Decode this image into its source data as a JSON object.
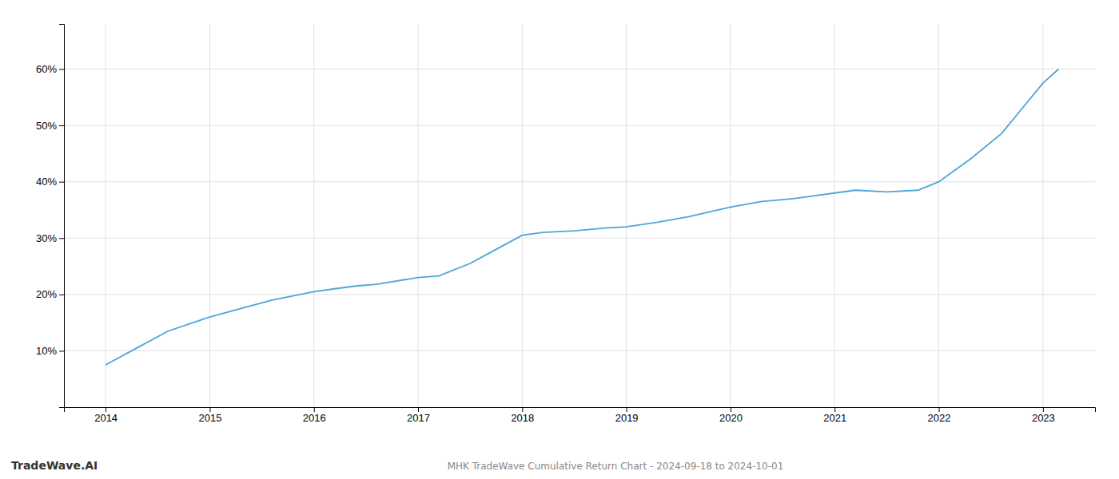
{
  "chart_data": {
    "type": "line",
    "title": "MHK TradeWave Cumulative Return Chart - 2024-09-18 to 2024-10-01",
    "annotations": [
      "TradeWave.AI"
    ],
    "color": "#4da6d8",
    "grid": true,
    "x": [
      2014.0,
      2014.3,
      2014.6,
      2015.0,
      2015.3,
      2015.6,
      2016.0,
      2016.2,
      2016.4,
      2016.6,
      2017.0,
      2017.2,
      2017.5,
      2017.7,
      2018.0,
      2018.2,
      2018.5,
      2018.8,
      2019.0,
      2019.3,
      2019.6,
      2020.0,
      2020.3,
      2020.6,
      2021.0,
      2021.2,
      2021.5,
      2021.8,
      2022.0,
      2022.3,
      2022.6,
      2023.0,
      2023.15
    ],
    "values": [
      7.5,
      10.5,
      13.5,
      16.0,
      17.5,
      19.0,
      20.5,
      21.0,
      21.5,
      21.8,
      23.0,
      23.3,
      25.5,
      27.5,
      30.5,
      31.0,
      31.3,
      31.8,
      32.0,
      32.8,
      33.8,
      35.5,
      36.5,
      37.0,
      38.0,
      38.5,
      38.2,
      38.5,
      40.0,
      44.0,
      48.5,
      57.5,
      60.0
    ],
    "xlim": [
      2013.6,
      2023.5
    ],
    "xticks": [
      2014,
      2015,
      2016,
      2017,
      2018,
      2019,
      2020,
      2021,
      2022,
      2023
    ],
    "ylim": [
      0,
      68
    ],
    "yticks": [
      {
        "value": 10,
        "label": "10%"
      },
      {
        "value": 20,
        "label": "20%"
      },
      {
        "value": 30,
        "label": "30%"
      },
      {
        "value": 40,
        "label": "40%"
      },
      {
        "value": 50,
        "label": "50%"
      },
      {
        "value": 60,
        "label": "60%"
      }
    ]
  }
}
